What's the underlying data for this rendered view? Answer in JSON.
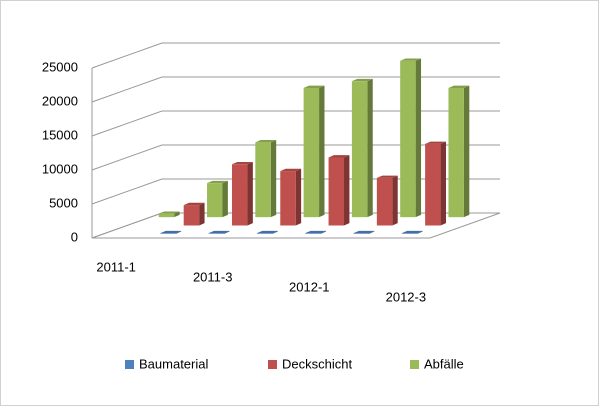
{
  "chart_data": {
    "type": "bar3d",
    "categories": [
      "2011-1",
      null,
      "2011-3",
      null,
      "2012-1",
      null,
      "2012-3"
    ],
    "series": [
      {
        "name": "Baumaterial",
        "color": "#4f81bd",
        "values": [
          null,
          100,
          100,
          100,
          100,
          100,
          100
        ]
      },
      {
        "name": "Deckschicht",
        "color": "#c0504d",
        "values": [
          null,
          3000,
          9000,
          8000,
          10000,
          7000,
          12000
        ]
      },
      {
        "name": "Abfälle",
        "color": "#9bbb59",
        "values": [
          500,
          5000,
          11000,
          19000,
          20000,
          23000,
          19000
        ]
      }
    ],
    "ylim": [
      0,
      25000
    ],
    "yticks": [
      0,
      5000,
      10000,
      15000,
      20000,
      25000
    ],
    "grid": true,
    "legend": "bottom"
  }
}
